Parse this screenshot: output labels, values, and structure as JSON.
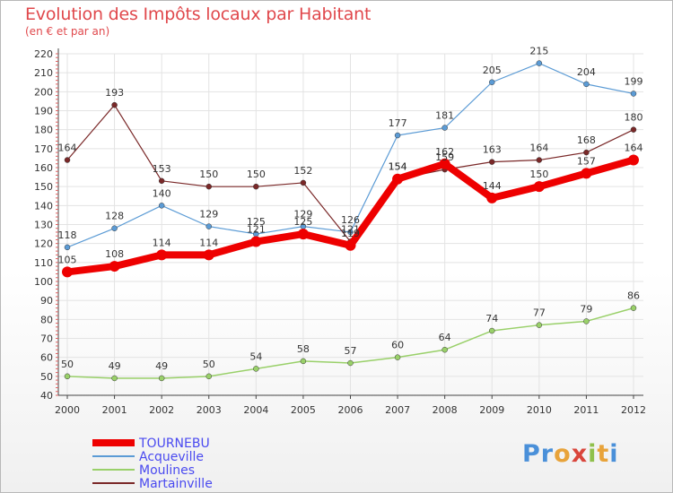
{
  "chart_data": {
    "type": "line",
    "title": "Evolution des Impôts locaux par Habitant",
    "subtitle": "(en € et par an)",
    "x": [
      "2000",
      "2001",
      "2002",
      "2003",
      "2004",
      "2005",
      "2006",
      "2007",
      "2008",
      "2009",
      "2010",
      "2011",
      "2012"
    ],
    "ylim": [
      40,
      220
    ],
    "yticks": [
      40,
      50,
      60,
      70,
      80,
      90,
      100,
      110,
      120,
      130,
      140,
      150,
      160,
      170,
      180,
      190,
      200,
      210,
      220
    ],
    "grid": true,
    "legend_position": "bottom-left",
    "series": [
      {
        "name": "TOURNEBU",
        "color": "#ee0000",
        "values": [
          105,
          108,
          114,
          114,
          121,
          125,
          119,
          154,
          162,
          144,
          150,
          157,
          164
        ]
      },
      {
        "name": "Acqueville",
        "color": "#5b9bd5",
        "values": [
          118,
          128,
          140,
          129,
          125,
          129,
          126,
          177,
          181,
          205,
          215,
          204,
          199
        ]
      },
      {
        "name": "Moulines",
        "color": "#99d069",
        "values": [
          50,
          49,
          49,
          50,
          54,
          58,
          57,
          60,
          64,
          74,
          77,
          79,
          86
        ]
      },
      {
        "name": "Martainville",
        "color": "#7a2828",
        "values": [
          164,
          193,
          153,
          150,
          150,
          152,
          121,
          154,
          159,
          163,
          164,
          168,
          180
        ]
      }
    ]
  },
  "logo_text": "Proxiti"
}
